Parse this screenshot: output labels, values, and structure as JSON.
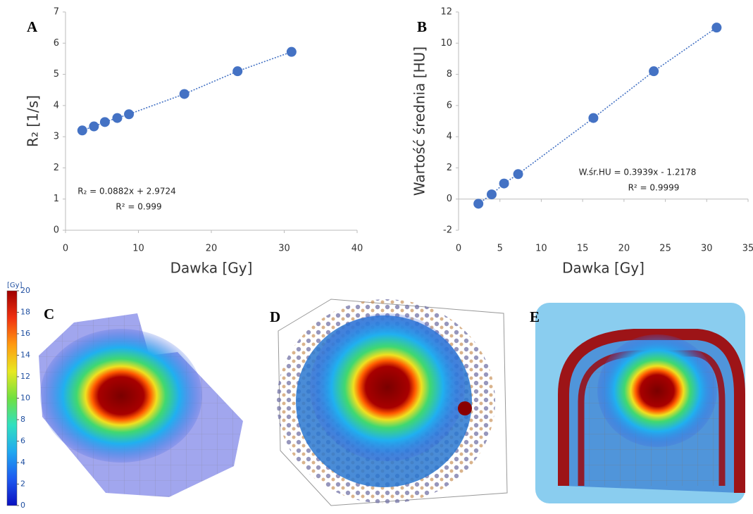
{
  "chart_data": [
    {
      "type": "scatter",
      "panel_label": "A",
      "color": "#4472c4",
      "trendline": true,
      "x": [
        2.3,
        3.9,
        5.4,
        7.1,
        8.7,
        16.3,
        23.6,
        31.0
      ],
      "values": [
        3.2,
        3.33,
        3.47,
        3.6,
        3.72,
        4.37,
        5.1,
        5.72
      ],
      "xlim": [
        0,
        40
      ],
      "xticks": [
        0,
        10,
        20,
        30,
        40
      ],
      "ylim": [
        0,
        7
      ],
      "yticks": [
        0,
        1,
        2,
        3,
        4,
        5,
        6,
        7
      ],
      "x_label": "Dawka [Gy]",
      "y_label": "R₂ [1/s]",
      "annotations": [
        "R₂ = 0.0882x + 2.9724",
        "R² = 0.999"
      ]
    },
    {
      "type": "scatter",
      "panel_label": "B",
      "color": "#4472c4",
      "trendline": true,
      "x": [
        2.4,
        4.0,
        5.5,
        7.2,
        16.3,
        23.6,
        31.2
      ],
      "values": [
        -0.3,
        0.3,
        1.0,
        1.6,
        5.2,
        8.2,
        11.0
      ],
      "xlim": [
        0,
        35
      ],
      "xticks": [
        0,
        5,
        10,
        15,
        20,
        25,
        30,
        35
      ],
      "ylim": [
        -2,
        12
      ],
      "yticks": [
        -2,
        0,
        2,
        4,
        6,
        8,
        10,
        12
      ],
      "x_label": "Dawka [Gy]",
      "y_label": "Wartość średnia [HU]",
      "annotations": [
        "W.śr.HU = 0.3939x - 1.2178",
        "R² = 0.9999"
      ]
    },
    {
      "type": "colorbar",
      "label": "[Gy]",
      "ylim": [
        0,
        20
      ],
      "yticks": [
        0,
        2,
        4,
        6,
        8,
        10,
        12,
        14,
        16,
        18,
        20
      ],
      "colors": [
        "#0a10c0",
        "#1e5af0",
        "#20a8f0",
        "#30e0c0",
        "#70e040",
        "#e8e820",
        "#ff9a10",
        "#f03010",
        "#a00000"
      ]
    }
  ],
  "panels": [
    {
      "label": "C"
    },
    {
      "label": "D"
    },
    {
      "label": "E"
    }
  ]
}
